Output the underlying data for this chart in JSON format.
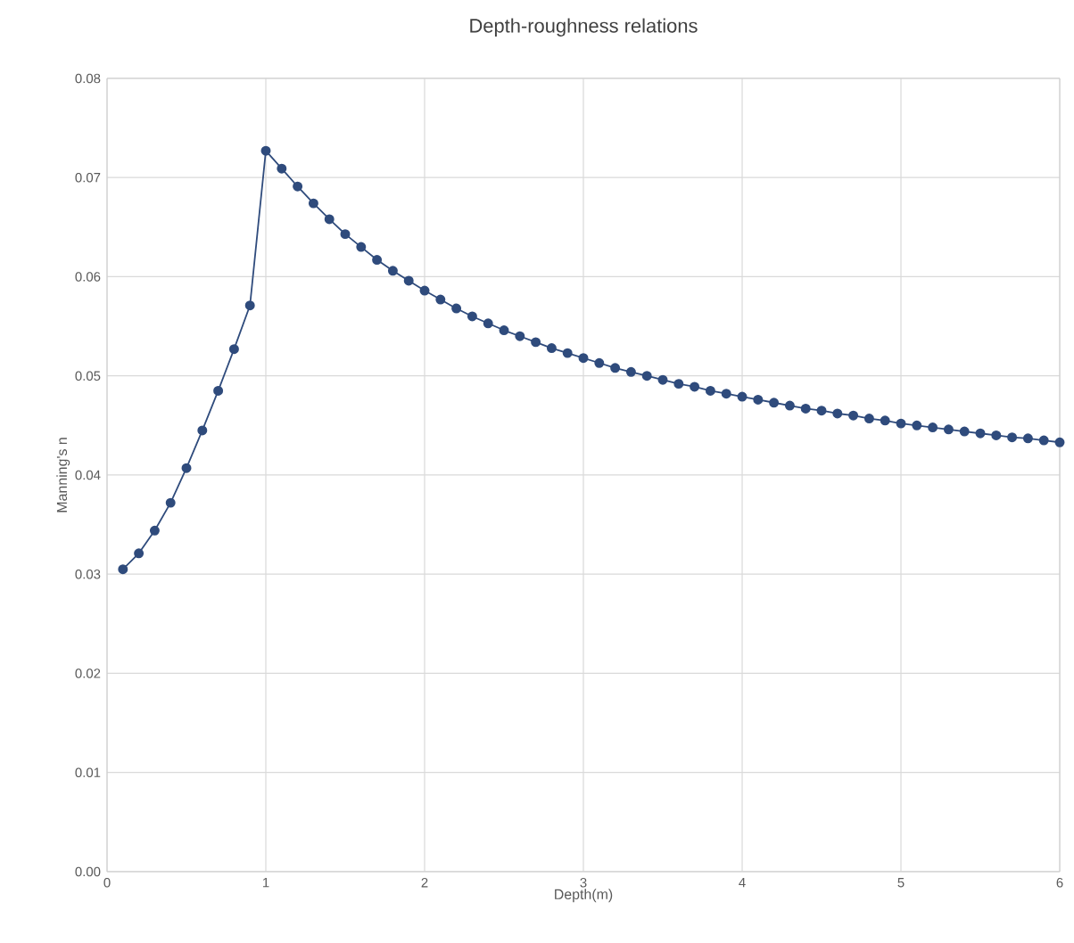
{
  "chart_data": {
    "type": "line",
    "title": "Depth-roughness relations",
    "xlabel": "Depth(m)",
    "ylabel": "Manning's n",
    "x": [
      0.1,
      0.2,
      0.3,
      0.4,
      0.5,
      0.6,
      0.7,
      0.8,
      0.9,
      1.0,
      1.1,
      1.2,
      1.3,
      1.4,
      1.5,
      1.6,
      1.7,
      1.8,
      1.9,
      2.0,
      2.1,
      2.2,
      2.3,
      2.4,
      2.5,
      2.6,
      2.7,
      2.8,
      2.9,
      3.0,
      3.1,
      3.2,
      3.3,
      3.4,
      3.5,
      3.6,
      3.7,
      3.8,
      3.9,
      4.0,
      4.1,
      4.2,
      4.3,
      4.4,
      4.5,
      4.6,
      4.7,
      4.8,
      4.9,
      5.0,
      5.1,
      5.2,
      5.3,
      5.4,
      5.5,
      5.6,
      5.7,
      5.8,
      5.9,
      6.0
    ],
    "series": [
      {
        "color": "#2f4b7c",
        "values": [
          0.0305,
          0.0321,
          0.0344,
          0.0372,
          0.0407,
          0.0445,
          0.0485,
          0.0527,
          0.0571,
          0.0727,
          0.0709,
          0.0691,
          0.0674,
          0.0658,
          0.0643,
          0.063,
          0.0617,
          0.0606,
          0.0596,
          0.0586,
          0.0577,
          0.0568,
          0.056,
          0.0553,
          0.0546,
          0.054,
          0.0534,
          0.0528,
          0.0523,
          0.0518,
          0.0513,
          0.0508,
          0.0504,
          0.05,
          0.0496,
          0.0492,
          0.0489,
          0.0485,
          0.0482,
          0.0479,
          0.0476,
          0.0473,
          0.047,
          0.0467,
          0.0465,
          0.0462,
          0.046,
          0.0457,
          0.0455,
          0.0452,
          0.045,
          0.0448,
          0.0446,
          0.0444,
          0.0442,
          0.044,
          0.0438,
          0.0437,
          0.0435,
          0.0433
        ]
      }
    ],
    "xlim": [
      0,
      6
    ],
    "xticks": [
      0,
      1,
      2,
      3,
      4,
      5,
      6
    ],
    "ylim": [
      0,
      0.08
    ],
    "yticks": [
      {
        "value": 0,
        "label": "0.00"
      },
      {
        "value": 0.01,
        "label": "0.01"
      },
      {
        "value": 0.02,
        "label": "0.02"
      },
      {
        "value": 0.03,
        "label": "0.03"
      },
      {
        "value": 0.04,
        "label": "0.04"
      },
      {
        "value": 0.05,
        "label": "0.05"
      },
      {
        "value": 0.06,
        "label": "0.06"
      },
      {
        "value": 0.07,
        "label": "0.07"
      },
      {
        "value": 0.08,
        "label": "0.08"
      }
    ],
    "grid": true,
    "marker": "circle",
    "line_style": "solid"
  }
}
